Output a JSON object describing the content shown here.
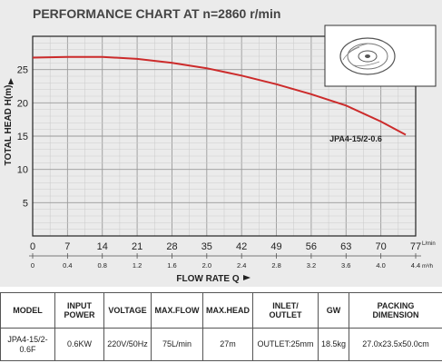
{
  "chart_data": {
    "type": "line",
    "title": "PERFORMANCE CHART AT n=2860 r/min",
    "ylabel": "TOTAL HEAD H(m)",
    "xlabel": "FLOW RATE Q",
    "x_unit_primary": "L/min",
    "x_unit_secondary": "m³/h",
    "xlim": [
      0,
      77
    ],
    "ylim": [
      0,
      30
    ],
    "x_ticks_primary": [
      "0",
      "7",
      "14",
      "21",
      "28",
      "35",
      "42",
      "49",
      "56",
      "63",
      "70",
      "77"
    ],
    "x_ticks_secondary": [
      "0",
      "0.4",
      "0.8",
      "1.2",
      "1.6",
      "2.0",
      "2.4",
      "2.8",
      "3.2",
      "3.6",
      "4.0",
      "4.4"
    ],
    "y_ticks": [
      "5",
      "10",
      "15",
      "20",
      "25"
    ],
    "grid": true,
    "series": [
      {
        "name": "JPA4-15/2-0.6",
        "color": "#cc2b2b",
        "x": [
          0,
          7,
          14,
          21,
          28,
          35,
          42,
          49,
          56,
          63,
          70,
          75
        ],
        "y": [
          26.8,
          26.9,
          26.9,
          26.6,
          26.0,
          25.2,
          24.1,
          22.8,
          21.3,
          19.6,
          17.2,
          15.2
        ]
      }
    ]
  },
  "table": {
    "headers": [
      "MODEL",
      "INPUT\nPOWER",
      "VOLTAGE",
      "MAX.FLOW",
      "MAX.HEAD",
      "INLET/\nOUTLET",
      "GW",
      "PACKING\nDIMENSION"
    ],
    "row": [
      "JPA4-15/2-\n0.6F",
      "0.6KW",
      "220V/50Hz",
      "75L/min",
      "27m",
      "OUTLET:25mm",
      "18.5kg",
      "27.0x23.5x50.0cm"
    ]
  }
}
